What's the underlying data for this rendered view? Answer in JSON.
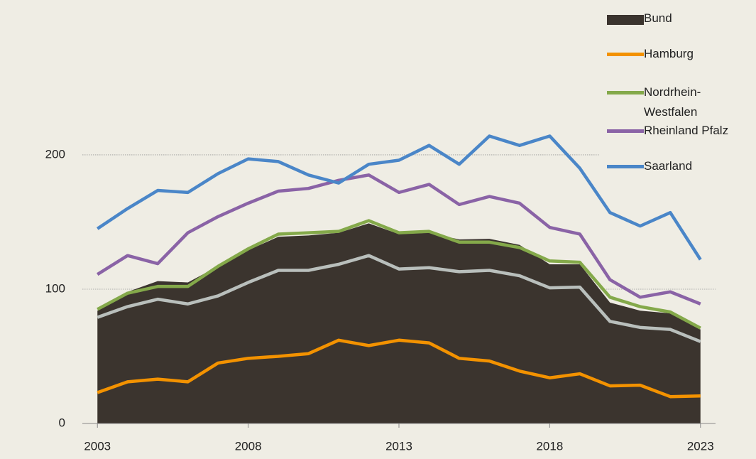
{
  "chart_data": {
    "type": "line",
    "x": [
      2003,
      2004,
      2005,
      2006,
      2007,
      2008,
      2009,
      2010,
      2011,
      2012,
      2013,
      2014,
      2015,
      2016,
      2017,
      2018,
      2019,
      2020,
      2021,
      2022,
      2023
    ],
    "xlim": [
      2002.5,
      2023.5
    ],
    "xticks": [
      2003,
      2008,
      2013,
      2018,
      2023
    ],
    "ylim": [
      0,
      310
    ],
    "yticks": [
      0,
      100,
      200
    ],
    "grid": true,
    "legend": "top-right",
    "series": [
      {
        "name": "Bund",
        "kind": "area",
        "color": "#3b342e",
        "values": [
          84,
          98,
          106,
          105,
          117,
          129,
          139,
          140,
          142,
          149,
          141,
          142,
          137,
          137.5,
          133,
          118.5,
          118.5,
          90,
          84,
          82,
          70
        ]
      },
      {
        "color": "#b9bfbc",
        "values": [
          79,
          87,
          92.5,
          89,
          95,
          105,
          114,
          114,
          118.5,
          125,
          115,
          116,
          113,
          114,
          110,
          101,
          101.5,
          76,
          71.5,
          70,
          61
        ]
      },
      {
        "name": "Hamburg",
        "color": "#f39200",
        "values": [
          23,
          31,
          33,
          31,
          45,
          48.5,
          50,
          52,
          62,
          58,
          62,
          60,
          48.5,
          46.5,
          39,
          34,
          37,
          28,
          28.5,
          20,
          20.5
        ]
      },
      {
        "name": "Nordrhein-Westfalen",
        "color": "#84a94a",
        "values": [
          85,
          97,
          102,
          102,
          117,
          130,
          141,
          142,
          143,
          151,
          142,
          143,
          135,
          135,
          131,
          121,
          120,
          94,
          87,
          83,
          71
        ]
      },
      {
        "name": "Rheinland Pfalz",
        "color": "#8a63a6",
        "values": [
          111,
          125,
          119,
          142,
          154,
          164,
          173,
          175,
          181,
          185,
          172,
          178,
          163,
          169,
          164,
          146,
          141,
          107,
          94,
          98,
          89
        ]
      },
      {
        "name": "Saarland",
        "color": "#4a86c8",
        "values": [
          145,
          160,
          173.5,
          172,
          186,
          197,
          195,
          185,
          179,
          193,
          196,
          207,
          193,
          214,
          207,
          214,
          190,
          157,
          147,
          157,
          122
        ]
      }
    ]
  }
}
